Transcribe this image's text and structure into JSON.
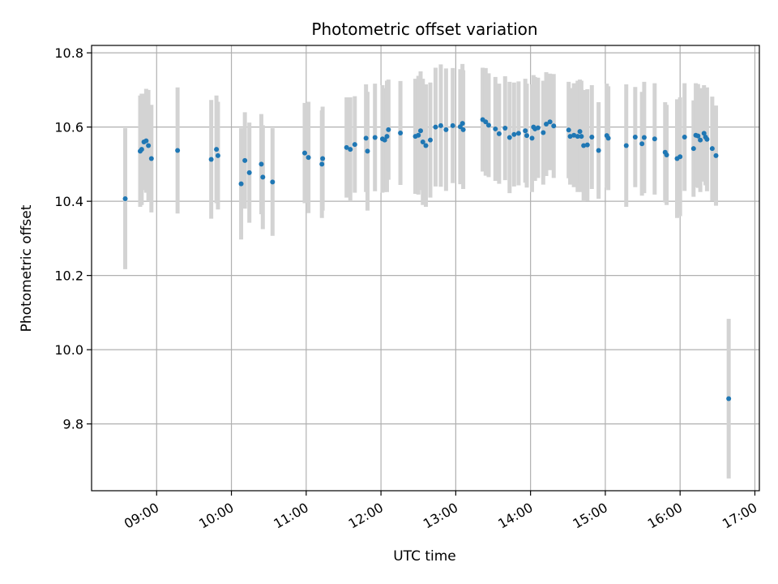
{
  "chart_data": {
    "type": "scatter",
    "title": "Photometric offset variation",
    "xlabel": "UTC time",
    "ylabel": "Photometric offset",
    "x_unit": "hours UTC",
    "xlim": [
      8.13,
      17.06
    ],
    "ylim": [
      9.62,
      10.82
    ],
    "x_ticks": [
      {
        "value": 9,
        "label": "09:00"
      },
      {
        "value": 10,
        "label": "10:00"
      },
      {
        "value": 11,
        "label": "11:00"
      },
      {
        "value": 12,
        "label": "12:00"
      },
      {
        "value": 13,
        "label": "13:00"
      },
      {
        "value": 14,
        "label": "14:00"
      },
      {
        "value": 15,
        "label": "15:00"
      },
      {
        "value": 16,
        "label": "16:00"
      },
      {
        "value": 17,
        "label": "17:00"
      }
    ],
    "y_ticks": [
      {
        "value": 9.8,
        "label": "9.8"
      },
      {
        "value": 10.0,
        "label": "10.0"
      },
      {
        "value": 10.2,
        "label": "10.2"
      },
      {
        "value": 10.4,
        "label": "10.4"
      },
      {
        "value": 10.6,
        "label": "10.6"
      },
      {
        "value": 10.8,
        "label": "10.8"
      }
    ],
    "grid": true,
    "colors": {
      "point": "#1f77b4",
      "errorbar": "#d3d3d3",
      "grid": "#b0b0b0"
    },
    "points": [
      [
        8.58,
        10.407,
        0.19
      ],
      [
        8.78,
        10.535,
        0.15
      ],
      [
        8.8,
        10.54,
        0.15
      ],
      [
        8.83,
        10.56,
        0.13
      ],
      [
        8.86,
        10.563,
        0.14
      ],
      [
        8.89,
        10.55,
        0.15
      ],
      [
        8.93,
        10.515,
        0.145
      ],
      [
        9.28,
        10.537,
        0.17
      ],
      [
        9.73,
        10.513,
        0.16
      ],
      [
        9.8,
        10.54,
        0.145
      ],
      [
        9.82,
        10.523,
        0.145
      ],
      [
        10.13,
        10.447,
        0.15
      ],
      [
        10.18,
        10.51,
        0.13
      ],
      [
        10.24,
        10.477,
        0.135
      ],
      [
        10.4,
        10.5,
        0.135
      ],
      [
        10.42,
        10.465,
        0.14
      ],
      [
        10.55,
        10.452,
        0.145
      ],
      [
        10.98,
        10.53,
        0.135
      ],
      [
        11.03,
        10.518,
        0.15
      ],
      [
        11.21,
        10.5,
        0.145
      ],
      [
        11.22,
        10.515,
        0.14
      ],
      [
        11.54,
        10.545,
        0.135
      ],
      [
        11.59,
        10.54,
        0.14
      ],
      [
        11.65,
        10.553,
        0.13
      ],
      [
        11.8,
        10.57,
        0.145
      ],
      [
        11.82,
        10.535,
        0.16
      ],
      [
        11.92,
        10.572,
        0.145
      ],
      [
        12.02,
        10.568,
        0.145
      ],
      [
        12.05,
        10.565,
        0.14
      ],
      [
        12.08,
        10.575,
        0.15
      ],
      [
        12.1,
        10.593,
        0.135
      ],
      [
        12.26,
        10.584,
        0.14
      ],
      [
        12.46,
        10.575,
        0.155
      ],
      [
        12.5,
        10.578,
        0.16
      ],
      [
        12.53,
        10.59,
        0.16
      ],
      [
        12.56,
        10.56,
        0.17
      ],
      [
        12.6,
        10.55,
        0.165
      ],
      [
        12.66,
        10.565,
        0.155
      ],
      [
        12.73,
        10.6,
        0.16
      ],
      [
        12.8,
        10.604,
        0.165
      ],
      [
        12.87,
        10.593,
        0.165
      ],
      [
        12.96,
        10.604,
        0.155
      ],
      [
        13.06,
        10.601,
        0.155
      ],
      [
        13.09,
        10.61,
        0.16
      ],
      [
        13.1,
        10.593,
        0.16
      ],
      [
        13.36,
        10.62,
        0.14
      ],
      [
        13.4,
        10.614,
        0.145
      ],
      [
        13.44,
        10.605,
        0.14
      ],
      [
        13.53,
        10.595,
        0.14
      ],
      [
        13.58,
        10.582,
        0.135
      ],
      [
        13.66,
        10.597,
        0.14
      ],
      [
        13.72,
        10.572,
        0.15
      ],
      [
        13.78,
        10.58,
        0.14
      ],
      [
        13.84,
        10.583,
        0.14
      ],
      [
        13.93,
        10.59,
        0.14
      ],
      [
        13.95,
        10.577,
        0.14
      ],
      [
        14.02,
        10.57,
        0.145
      ],
      [
        14.04,
        10.6,
        0.14
      ],
      [
        14.06,
        10.595,
        0.14
      ],
      [
        14.1,
        10.598,
        0.135
      ],
      [
        14.17,
        10.585,
        0.14
      ],
      [
        14.21,
        10.608,
        0.14
      ],
      [
        14.26,
        10.614,
        0.13
      ],
      [
        14.31,
        10.603,
        0.14
      ],
      [
        14.51,
        10.592,
        0.13
      ],
      [
        14.53,
        10.575,
        0.13
      ],
      [
        14.58,
        10.578,
        0.14
      ],
      [
        14.63,
        10.575,
        0.15
      ],
      [
        14.66,
        10.588,
        0.14
      ],
      [
        14.68,
        10.575,
        0.15
      ],
      [
        14.71,
        10.55,
        0.15
      ],
      [
        14.76,
        10.552,
        0.15
      ],
      [
        14.82,
        10.573,
        0.14
      ],
      [
        14.91,
        10.537,
        0.13
      ],
      [
        15.02,
        10.577,
        0.14
      ],
      [
        15.04,
        10.57,
        0.14
      ],
      [
        15.28,
        10.55,
        0.165
      ],
      [
        15.4,
        10.573,
        0.135
      ],
      [
        15.49,
        10.555,
        0.14
      ],
      [
        15.52,
        10.572,
        0.15
      ],
      [
        15.66,
        10.568,
        0.15
      ],
      [
        15.8,
        10.532,
        0.135
      ],
      [
        15.82,
        10.525,
        0.135
      ],
      [
        15.96,
        10.515,
        0.16
      ],
      [
        16.0,
        10.52,
        0.16
      ],
      [
        16.06,
        10.573,
        0.145
      ],
      [
        16.18,
        10.542,
        0.13
      ],
      [
        16.21,
        10.578,
        0.14
      ],
      [
        16.24,
        10.576,
        0.14
      ],
      [
        16.27,
        10.565,
        0.14
      ],
      [
        16.32,
        10.583,
        0.13
      ],
      [
        16.34,
        10.573,
        0.13
      ],
      [
        16.36,
        10.567,
        0.14
      ],
      [
        16.43,
        10.542,
        0.14
      ],
      [
        16.48,
        10.523,
        0.135
      ],
      [
        16.65,
        9.868,
        0.215
      ]
    ]
  }
}
